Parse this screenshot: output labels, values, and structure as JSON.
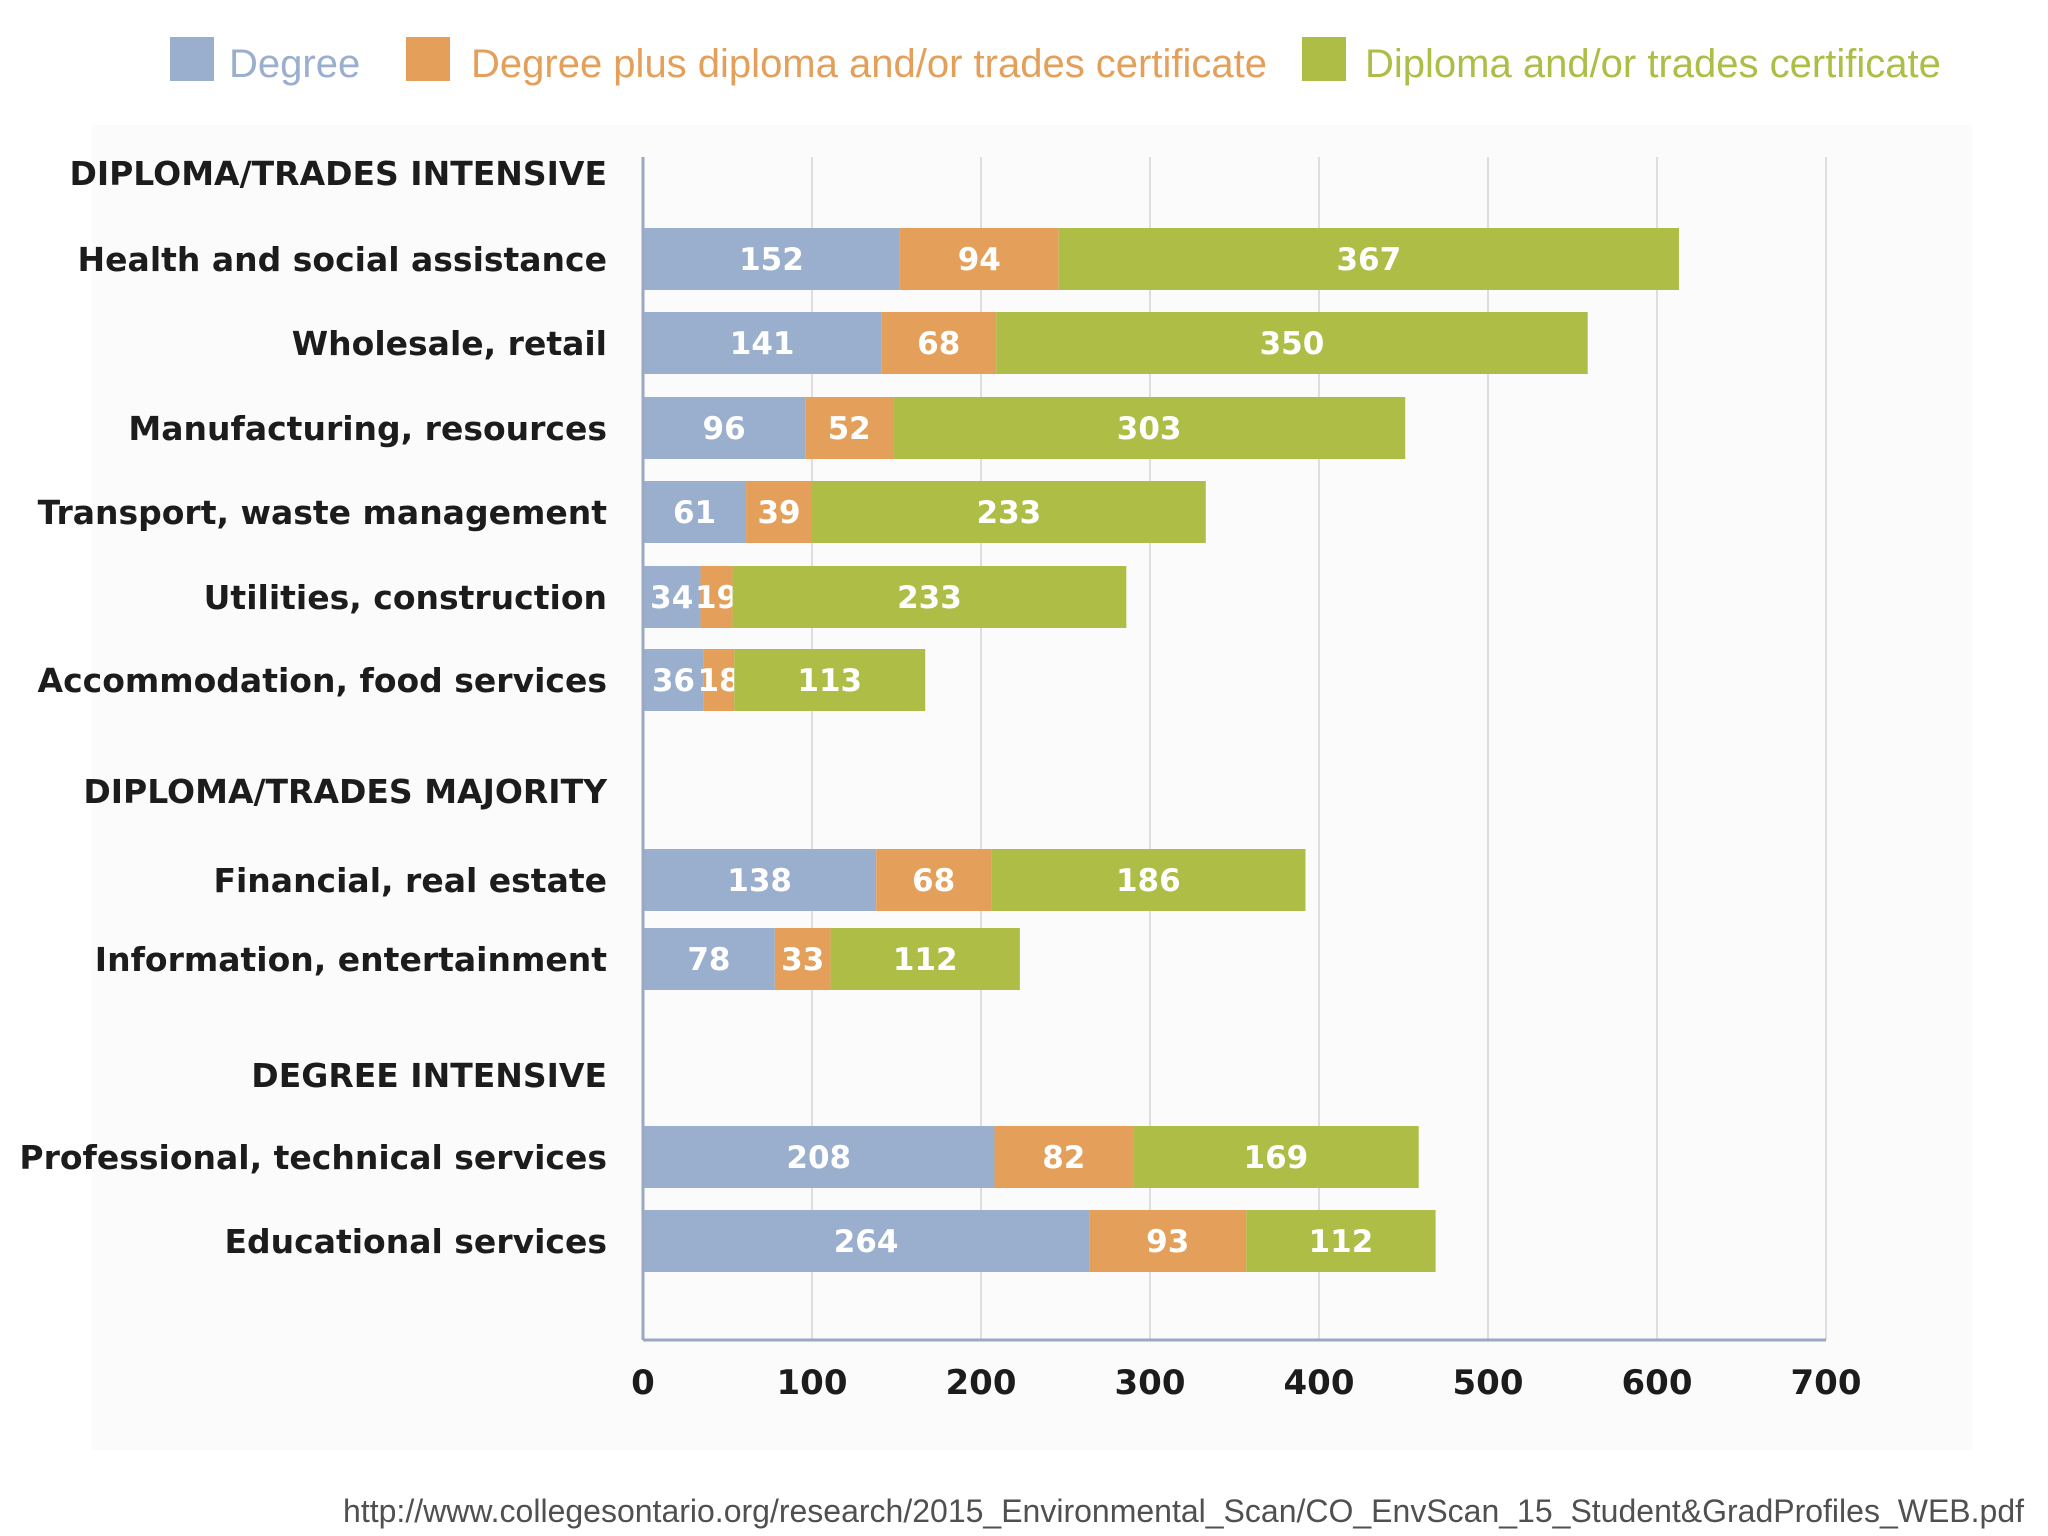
{
  "colors": {
    "degree": "#9aaecd",
    "degree_plus": "#e4a05a",
    "diploma": "#adbd46",
    "grid": "#dedede",
    "axis": "#9aa8c4",
    "background_panel": "#fbfbfb"
  },
  "chart_data": {
    "type": "bar",
    "orientation": "horizontal",
    "stacked": true,
    "xlim": [
      0,
      700
    ],
    "xticks": [
      "0",
      "100",
      "200",
      "300",
      "400",
      "500",
      "600",
      "700"
    ],
    "grid": true,
    "legend_position": "top",
    "series": [
      {
        "name": "Degree",
        "color_key": "degree"
      },
      {
        "name": "Degree plus diploma and/or trades certificate",
        "color_key": "degree_plus"
      },
      {
        "name": "Diploma and/or trades certificate",
        "color_key": "diploma"
      }
    ],
    "groups": [
      {
        "heading": "DIPLOMA/TRADES INTENSIVE",
        "rows": [
          {
            "label": "Health and social assistance",
            "values": [
              152,
              94,
              367
            ]
          },
          {
            "label": "Wholesale, retail",
            "values": [
              141,
              68,
              350
            ]
          },
          {
            "label": "Manufacturing, resources",
            "values": [
              96,
              52,
              303
            ]
          },
          {
            "label": "Transport, waste management",
            "values": [
              61,
              39,
              233
            ]
          },
          {
            "label": "Utilities, construction",
            "values": [
              34,
              19,
              233
            ]
          },
          {
            "label": "Accommodation, food services",
            "values": [
              36,
              18,
              113
            ]
          }
        ]
      },
      {
        "heading": "DIPLOMA/TRADES MAJORITY",
        "rows": [
          {
            "label": "Financial, real estate",
            "values": [
              138,
              68,
              186
            ]
          },
          {
            "label": "Information, entertainment",
            "values": [
              78,
              33,
              112
            ]
          }
        ]
      },
      {
        "heading": "DEGREE INTENSIVE",
        "rows": [
          {
            "label": "Professional, technical services",
            "values": [
              208,
              82,
              169
            ]
          },
          {
            "label": "Educational services",
            "values": [
              264,
              93,
              112
            ]
          }
        ]
      }
    ]
  },
  "source": {
    "url_text": "http://www.collegesontario.org/research/2015_Environmental_Scan/CO_EnvScan_15_Student&GradProfiles_WEB.pdf"
  }
}
